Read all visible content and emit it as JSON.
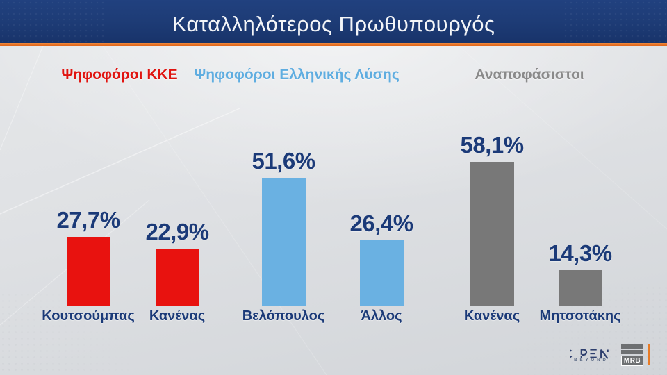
{
  "header": {
    "title": "Καταλληλότερος Πρωθυπουργός"
  },
  "groups": [
    {
      "label": "Ψηφοφόροι ΚΚΕ",
      "color": "#e01410"
    },
    {
      "label": "Ψηφοφόροι Ελληνικής Λύσης",
      "color": "#5fade0"
    },
    {
      "label": "Αναποφάσιστοι",
      "color": "#8a8a8a"
    }
  ],
  "chart_data": {
    "type": "bar",
    "title": "Καταλληλότερος Πρωθυπουργός",
    "xlabel": "",
    "ylabel": "",
    "ylim": [
      0,
      65
    ],
    "grid": false,
    "legend_position": "top",
    "value_format": "comma-decimal percent",
    "series": [
      {
        "name": "Ψηφοφόροι ΚΚΕ",
        "color": "#e8120f",
        "points": [
          {
            "label": "Κουτσούμπας",
            "value": 27.7,
            "display": "27,7%"
          },
          {
            "label": "Κανένας",
            "value": 22.9,
            "display": "22,9%"
          }
        ]
      },
      {
        "name": "Ψηφοφόροι Ελληνικής Λύσης",
        "color": "#6ab1e2",
        "points": [
          {
            "label": "Βελόπουλος",
            "value": 51.6,
            "display": "51,6%"
          },
          {
            "label": "Άλλος",
            "value": 26.4,
            "display": "26,4%"
          }
        ]
      },
      {
        "name": "Αναποφάσιστοι",
        "color": "#787878",
        "points": [
          {
            "label": "Κανένας",
            "value": 58.1,
            "display": "58,1%"
          },
          {
            "label": "Μητσοτάκης",
            "value": 14.3,
            "display": "14,3%"
          }
        ]
      }
    ]
  },
  "footer": {
    "open_logo": "OPEN",
    "open_sub": "BEYOND",
    "mrb_logo": "MRB"
  },
  "colors": {
    "header_bg": "#1d3b75",
    "accent_orange": "#e87b25",
    "value_text": "#1b3a78",
    "background": "#dcdee0"
  }
}
